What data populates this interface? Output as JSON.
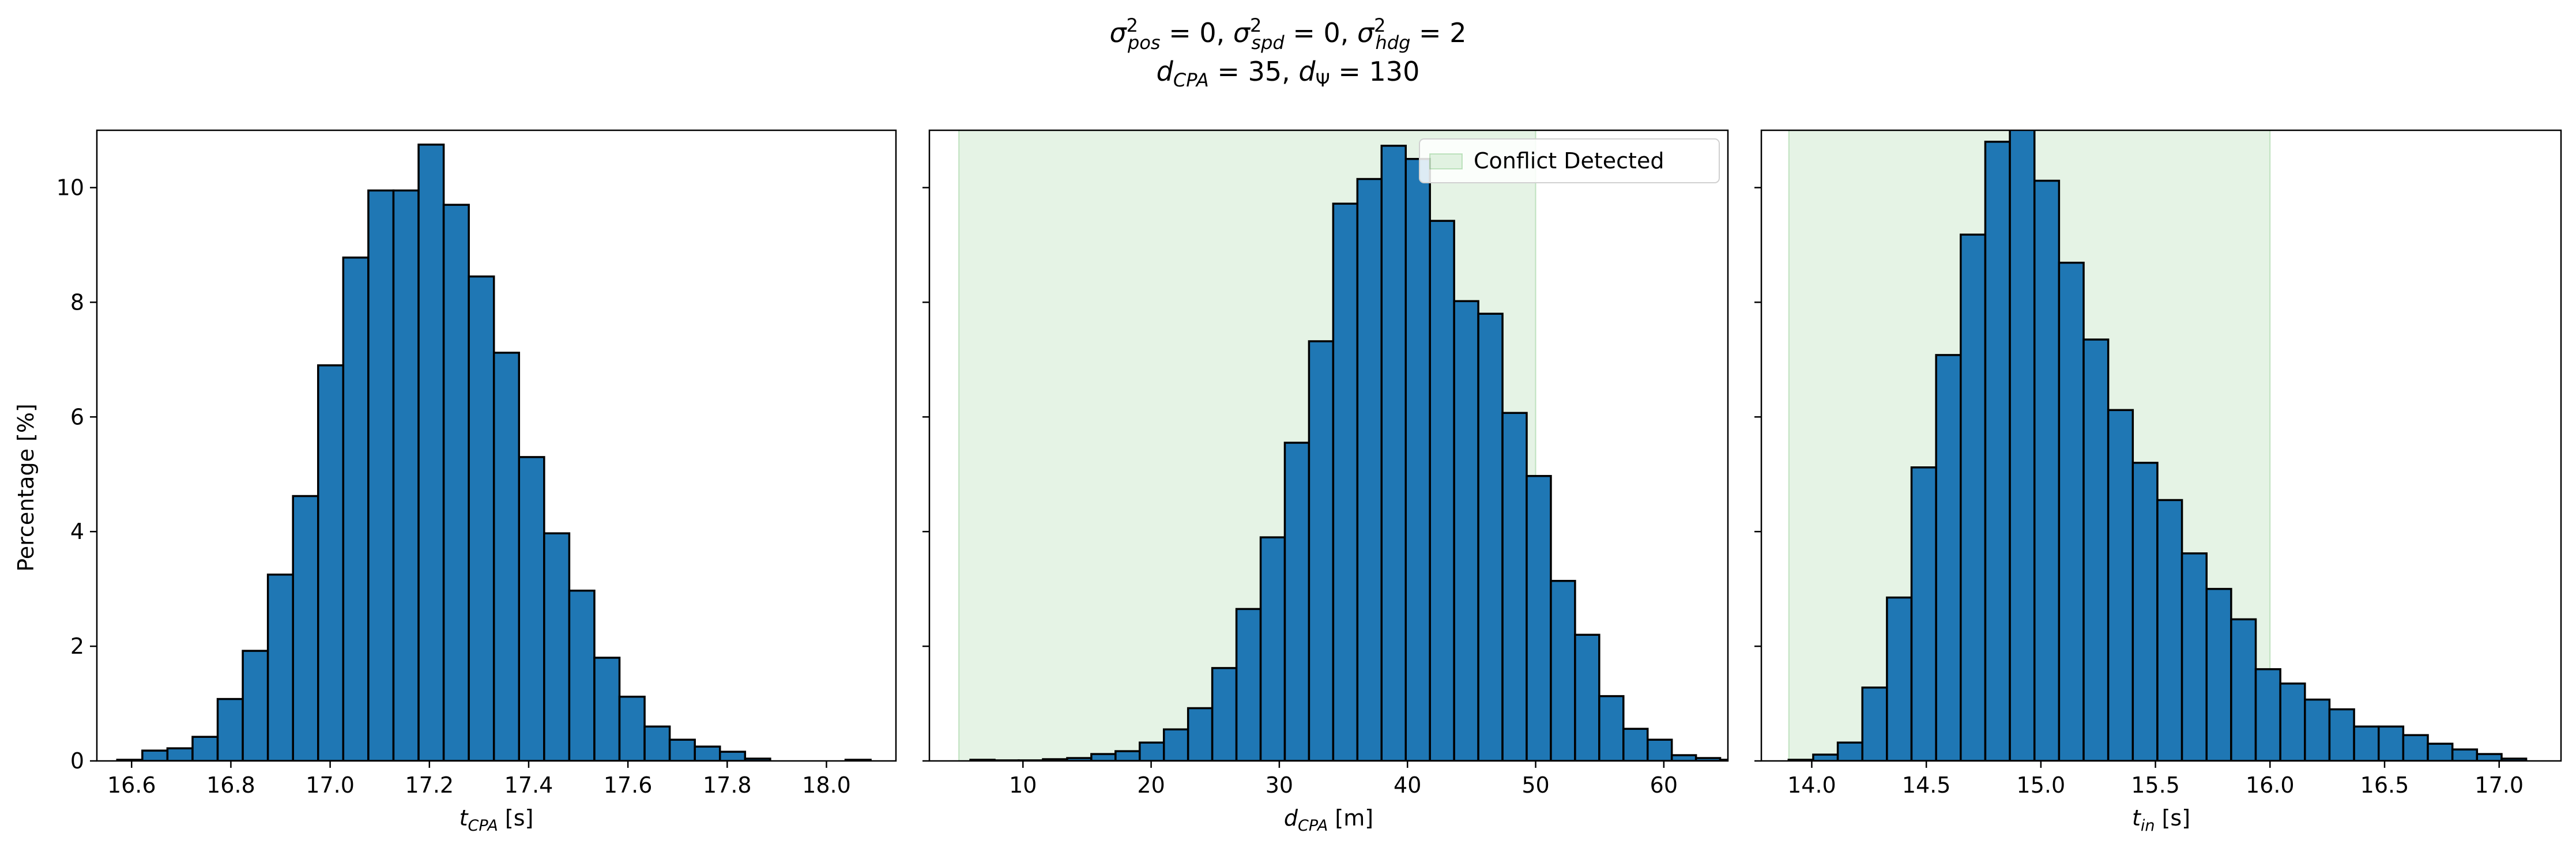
{
  "figure": {
    "title_line1": {
      "s1": "σ",
      "sup1": "2",
      "sub1": "pos",
      "eq1": " = 0, ",
      "s2": "σ",
      "sup2": "2",
      "sub2": "spd",
      "eq2": " = 0, ",
      "s3": "σ",
      "sup3": "2",
      "sub3": "hdg",
      "eq3": " = 2"
    },
    "title_line2": {
      "d1": "d",
      "sub1": "CPA",
      "eq1": " = 35, ",
      "d2": "d",
      "sub2": "Ψ",
      "eq2": " = 130"
    },
    "ylabel": "Percentage [%]",
    "legend_label": "Conflict Detected",
    "colors": {
      "bar": "#1f77b4",
      "edge": "#000000",
      "band": "#2ca02c"
    }
  },
  "chart_data": [
    {
      "type": "bar",
      "xlabel": {
        "main": "t",
        "sub": "CPA",
        "unit": " [s]"
      },
      "ylabel": "Percentage [%]",
      "xlim": [
        16.53,
        18.14
      ],
      "ylim": [
        0,
        11
      ],
      "xticks": [
        "16.6",
        "16.8",
        "17.0",
        "17.2",
        "17.4",
        "17.6",
        "17.8",
        "18.0"
      ],
      "yticks": [
        "0",
        "2",
        "4",
        "6",
        "8",
        "10"
      ],
      "bin_start": 16.571,
      "bin_width": 0.0506,
      "values": [
        0.02,
        0.18,
        0.22,
        0.42,
        1.08,
        1.92,
        3.25,
        4.62,
        6.9,
        8.78,
        9.95,
        9.95,
        10.75,
        9.7,
        8.45,
        7.12,
        5.3,
        3.97,
        2.97,
        1.8,
        1.12,
        0.6,
        0.37,
        0.25,
        0.16,
        0.04,
        0.0,
        0.0,
        0.0,
        0.02
      ],
      "conflict_band": null
    },
    {
      "type": "bar",
      "xlabel": {
        "main": "d",
        "sub": "CPA",
        "unit": " [m]"
      },
      "xlim": [
        2.7,
        65
      ],
      "ylim": [
        0,
        11
      ],
      "xticks": [
        "10",
        "20",
        "30",
        "40",
        "50",
        "60"
      ],
      "yticks": [
        "0",
        "2",
        "4",
        "6",
        "8",
        "10"
      ],
      "bin_start": 5.9,
      "bin_width": 1.887,
      "values": [
        0.02,
        0.01,
        0.01,
        0.03,
        0.05,
        0.12,
        0.17,
        0.32,
        0.55,
        0.92,
        1.62,
        2.65,
        3.9,
        5.55,
        7.32,
        9.72,
        10.15,
        10.73,
        10.5,
        9.42,
        8.02,
        7.8,
        6.07,
        4.97,
        3.14,
        2.2,
        1.13,
        0.56,
        0.37,
        0.1,
        0.05,
        0.02
      ],
      "conflict_band": [
        5,
        50
      ]
    },
    {
      "type": "bar",
      "xlabel": {
        "main": "t",
        "sub": "in",
        "unit": " [s]"
      },
      "xlim": [
        13.78,
        17.27
      ],
      "ylim": [
        0,
        11
      ],
      "xticks": [
        "14.0",
        "14.5",
        "15.0",
        "15.5",
        "16.0",
        "16.5",
        "17.0"
      ],
      "yticks": [
        "0",
        "2",
        "4",
        "6",
        "8",
        "10"
      ],
      "bin_start": 13.899,
      "bin_width": 0.1073,
      "values": [
        0.02,
        0.11,
        0.32,
        1.28,
        2.85,
        5.12,
        7.08,
        9.18,
        10.8,
        11.05,
        10.12,
        8.69,
        7.35,
        6.12,
        5.2,
        4.55,
        3.62,
        3.0,
        2.47,
        1.6,
        1.35,
        1.07,
        0.9,
        0.6,
        0.6,
        0.45,
        0.3,
        0.2,
        0.12,
        0.04
      ],
      "conflict_band": [
        13.9,
        16.0
      ]
    }
  ]
}
